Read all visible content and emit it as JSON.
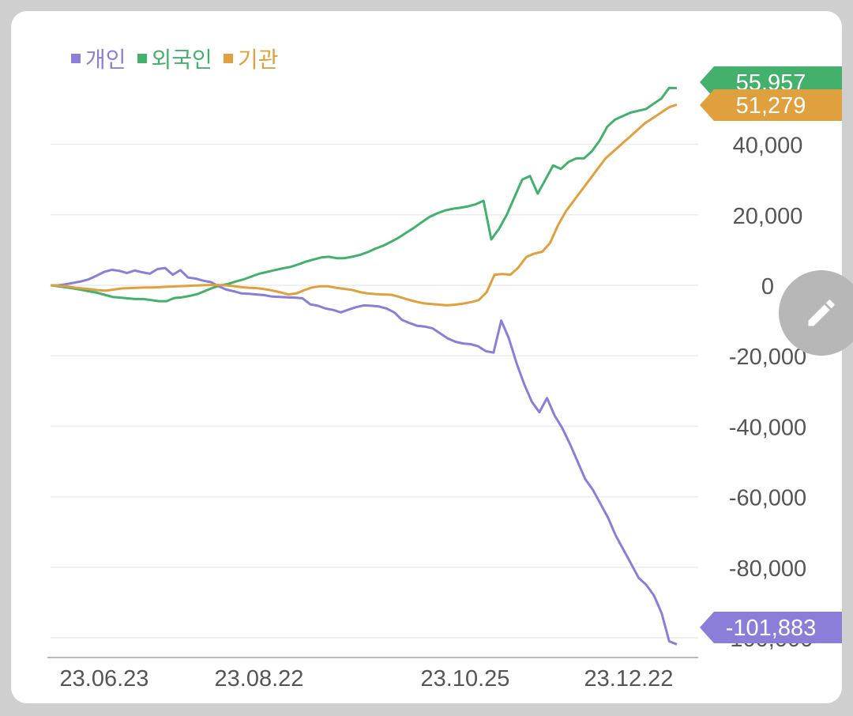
{
  "chart_data": {
    "type": "line",
    "x_ticks": [
      "23.06.23",
      "23.08.22",
      "23.10.25",
      "23.12.22"
    ],
    "y_ticks": [
      "40,000",
      "20,000",
      "0",
      "-20,000",
      "-40,000",
      "-60,000",
      "-80,000",
      "-100,000"
    ],
    "ylim": [
      -105000,
      56000
    ],
    "grid": true,
    "legend": "top-left",
    "series": [
      {
        "name": "개인",
        "color": "#8b7ed8",
        "last_label": "-101,883",
        "values": [
          0,
          0,
          300,
          700,
          1100,
          1700,
          2700,
          3800,
          4400,
          4100,
          3500,
          4200,
          3700,
          3300,
          4600,
          4900,
          3000,
          4300,
          2200,
          1900,
          1300,
          900,
          -300,
          -1200,
          -1700,
          -2300,
          -2400,
          -2600,
          -2800,
          -3200,
          -3300,
          -3400,
          -3500,
          -3700,
          -5400,
          -5800,
          -6600,
          -7000,
          -7700,
          -6900,
          -6200,
          -5700,
          -5800,
          -6000,
          -6600,
          -7700,
          -9800,
          -10700,
          -11500,
          -11700,
          -12200,
          -13600,
          -15100,
          -16000,
          -16500,
          -16700,
          -17300,
          -18700,
          -19100,
          -10000,
          -15000,
          -22000,
          -28000,
          -33000,
          -36000,
          -32000,
          -37000,
          -40500,
          -45000,
          -50000,
          -55000,
          -58000,
          -62000,
          -66000,
          -71000,
          -75000,
          -79000,
          -83000,
          -85000,
          -88000,
          -93000,
          -101000,
          -101883
        ]
      },
      {
        "name": "외국인",
        "color": "#43b16b",
        "last_label": "55,957",
        "values": [
          0,
          -300,
          -600,
          -900,
          -1300,
          -1700,
          -2100,
          -2700,
          -3300,
          -3500,
          -3700,
          -3900,
          -3900,
          -4200,
          -4500,
          -4500,
          -3600,
          -3400,
          -3000,
          -2500,
          -1600,
          -700,
          0,
          400,
          1100,
          1700,
          2500,
          3300,
          3800,
          4300,
          4800,
          5200,
          5900,
          6700,
          7300,
          7900,
          8100,
          7700,
          7700,
          8100,
          8600,
          9400,
          10400,
          11200,
          12300,
          13500,
          14900,
          16300,
          17900,
          19400,
          20400,
          21200,
          21700,
          22000,
          22400,
          23000,
          24000,
          13000,
          16000,
          20000,
          25000,
          30000,
          31000,
          26000,
          30000,
          34000,
          33000,
          35000,
          36000,
          36000,
          38000,
          41000,
          45000,
          47000,
          48000,
          49000,
          49500,
          50000,
          51500,
          53000,
          56000,
          55957
        ]
      },
      {
        "name": "기관",
        "color": "#e0a03e",
        "last_label": "51,279",
        "values": [
          0,
          -100,
          -300,
          -600,
          -900,
          -1100,
          -1400,
          -1500,
          -1200,
          -900,
          -800,
          -700,
          -600,
          -600,
          -500,
          -400,
          -300,
          -200,
          -100,
          0,
          100,
          100,
          0,
          -200,
          -500,
          -700,
          -800,
          -1100,
          -1500,
          -2000,
          -2600,
          -2300,
          -1400,
          -600,
          -300,
          -300,
          -700,
          -1000,
          -1300,
          -1900,
          -2300,
          -2500,
          -2600,
          -2700,
          -3300,
          -4000,
          -4600,
          -5100,
          -5300,
          -5500,
          -5700,
          -5500,
          -5200,
          -4800,
          -4200,
          -2000,
          3000,
          3200,
          3000,
          5000,
          8000,
          9000,
          9500,
          12000,
          17000,
          21000,
          24000,
          27000,
          30000,
          33000,
          36000,
          38000,
          40000,
          42000,
          44000,
          46000,
          47500,
          49000,
          50500,
          51279
        ]
      }
    ]
  }
}
